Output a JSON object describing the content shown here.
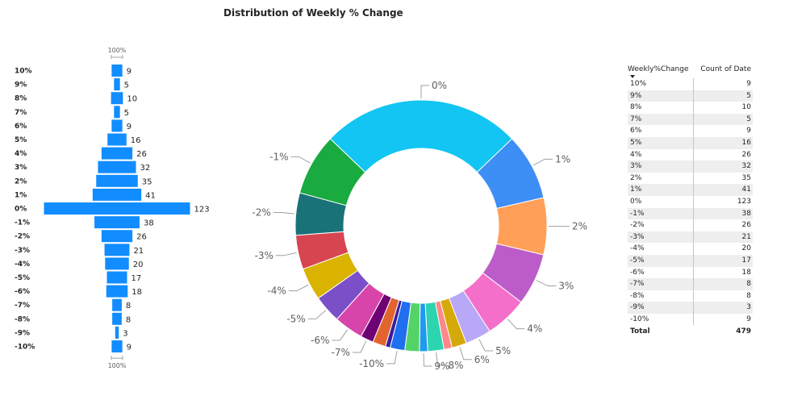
{
  "title": "Distribution of Weekly % Change",
  "chart_data": [
    {
      "type": "funnel",
      "categories": [
        "10%",
        "9%",
        "8%",
        "7%",
        "6%",
        "5%",
        "4%",
        "3%",
        "2%",
        "1%",
        "0%",
        "-1%",
        "-2%",
        "-3%",
        "-4%",
        "-5%",
        "-6%",
        "-7%",
        "-8%",
        "-9%",
        "-10%"
      ],
      "values": [
        9,
        5,
        10,
        5,
        9,
        16,
        26,
        32,
        35,
        41,
        123,
        38,
        26,
        21,
        20,
        17,
        18,
        8,
        8,
        3,
        9
      ],
      "top_label": "100%",
      "bottom_label": "100%",
      "color": "#118DFF"
    },
    {
      "type": "pie",
      "subtype": "donut",
      "categories": [
        "0%",
        "1%",
        "2%",
        "3%",
        "4%",
        "5%",
        "6%",
        "7%",
        "8%",
        "9%",
        "10%",
        "-10%",
        "-9%",
        "-8%",
        "-7%",
        "-6%",
        "-5%",
        "-4%",
        "-3%",
        "-2%",
        "-1%"
      ],
      "values": [
        123,
        41,
        35,
        32,
        26,
        16,
        9,
        5,
        10,
        5,
        9,
        9,
        3,
        8,
        8,
        18,
        17,
        20,
        21,
        26,
        38
      ],
      "labels": [
        "0%",
        "1%",
        "2%",
        "3%",
        "4%",
        "5%",
        "6%",
        "",
        "8%",
        "9%",
        "",
        "-10%",
        "",
        "",
        "-7%",
        "-6%",
        "-5%",
        "-4%",
        "-3%",
        "-2%",
        "-1%"
      ],
      "colors": [
        "#12C5F3",
        "#3D8EF5",
        "#FF9F58",
        "#BB5CC8",
        "#F46FC9",
        "#B9A7F7",
        "#D5A909",
        "#FF8787",
        "#2DD4B0",
        "#1E9AF0",
        "#54D466",
        "#1F6FEF",
        "#3A1CA0",
        "#E26530",
        "#6E0073",
        "#D845AA",
        "#7B4FC8",
        "#D9B300",
        "#D64550",
        "#197278",
        "#1AAB40"
      ]
    }
  ],
  "table": {
    "headers": [
      "Weekly%Change",
      "Count of Date"
    ],
    "rows": [
      [
        "10%",
        "9"
      ],
      [
        "9%",
        "5"
      ],
      [
        "8%",
        "10"
      ],
      [
        "7%",
        "5"
      ],
      [
        "6%",
        "9"
      ],
      [
        "5%",
        "16"
      ],
      [
        "4%",
        "26"
      ],
      [
        "3%",
        "32"
      ],
      [
        "2%",
        "35"
      ],
      [
        "1%",
        "41"
      ],
      [
        "0%",
        "123"
      ],
      [
        "-1%",
        "38"
      ],
      [
        "-2%",
        "26"
      ],
      [
        "-3%",
        "21"
      ],
      [
        "-4%",
        "20"
      ],
      [
        "-5%",
        "17"
      ],
      [
        "-6%",
        "18"
      ],
      [
        "-7%",
        "8"
      ],
      [
        "-8%",
        "8"
      ],
      [
        "-9%",
        "3"
      ],
      [
        "-10%",
        "9"
      ]
    ],
    "total_label": "Total",
    "total_value": "479"
  }
}
